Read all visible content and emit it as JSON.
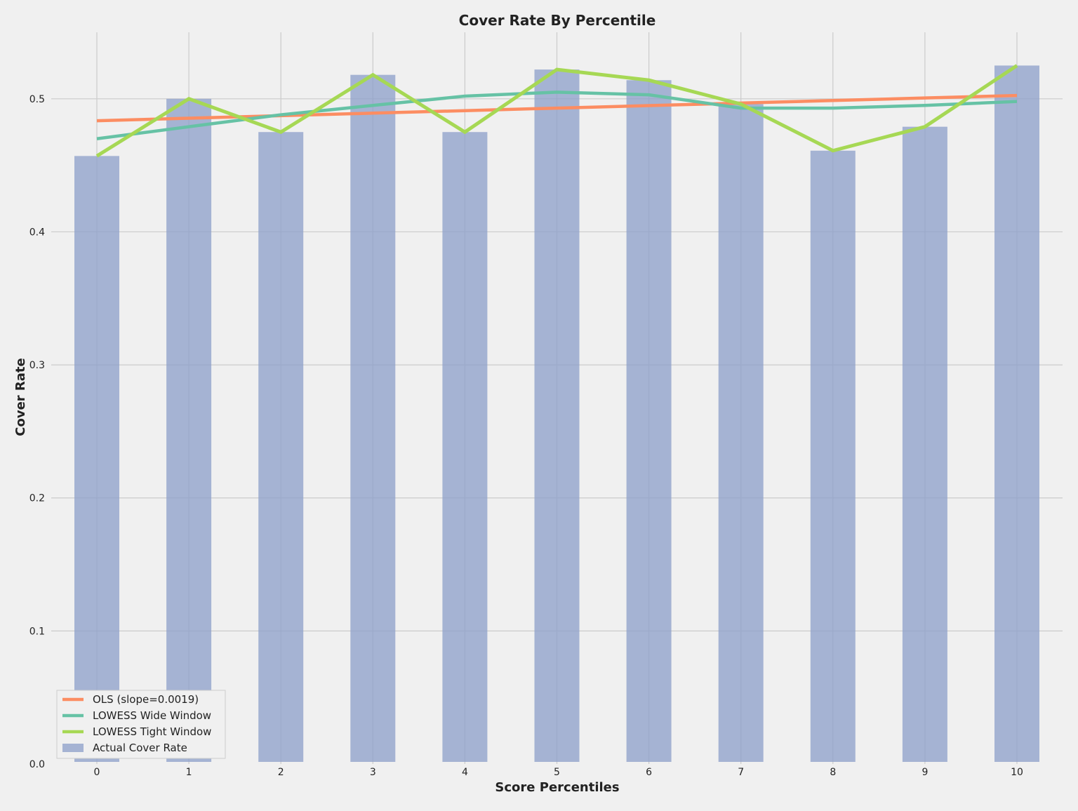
{
  "chart_data": {
    "type": "bar",
    "title": "Cover Rate By Percentile",
    "xlabel": "Score Percentiles",
    "ylabel": "Cover Rate",
    "categories": [
      "0",
      "1",
      "2",
      "3",
      "4",
      "5",
      "6",
      "7",
      "8",
      "9",
      "10"
    ],
    "ylim": [
      0,
      0.55
    ],
    "yticks": [
      "0.0",
      "0.1",
      "0.2",
      "0.3",
      "0.4",
      "0.5"
    ],
    "grid": true,
    "legend_position": "lower-left",
    "bars": {
      "name": "Actual Cover Rate",
      "color": "#8c9fca",
      "values": [
        0.457,
        0.5,
        0.475,
        0.518,
        0.475,
        0.522,
        0.514,
        0.496,
        0.461,
        0.479,
        0.525
      ]
    },
    "lines": [
      {
        "name": "OLS (slope=0.0019)",
        "color": "#fc8d62",
        "values": [
          0.4835,
          0.4854,
          0.4873,
          0.4892,
          0.4911,
          0.493,
          0.4949,
          0.4968,
          0.4987,
          0.5006,
          0.5025
        ]
      },
      {
        "name": "LOWESS Wide Window",
        "color": "#66c2a5",
        "values": [
          0.47,
          0.479,
          0.488,
          0.495,
          0.502,
          0.505,
          0.503,
          0.493,
          0.493,
          0.495,
          0.498
        ]
      },
      {
        "name": "LOWESS Tight Window",
        "color": "#a6d854",
        "values": [
          0.457,
          0.5,
          0.475,
          0.518,
          0.475,
          0.522,
          0.514,
          0.496,
          0.461,
          0.479,
          0.525
        ]
      }
    ]
  }
}
